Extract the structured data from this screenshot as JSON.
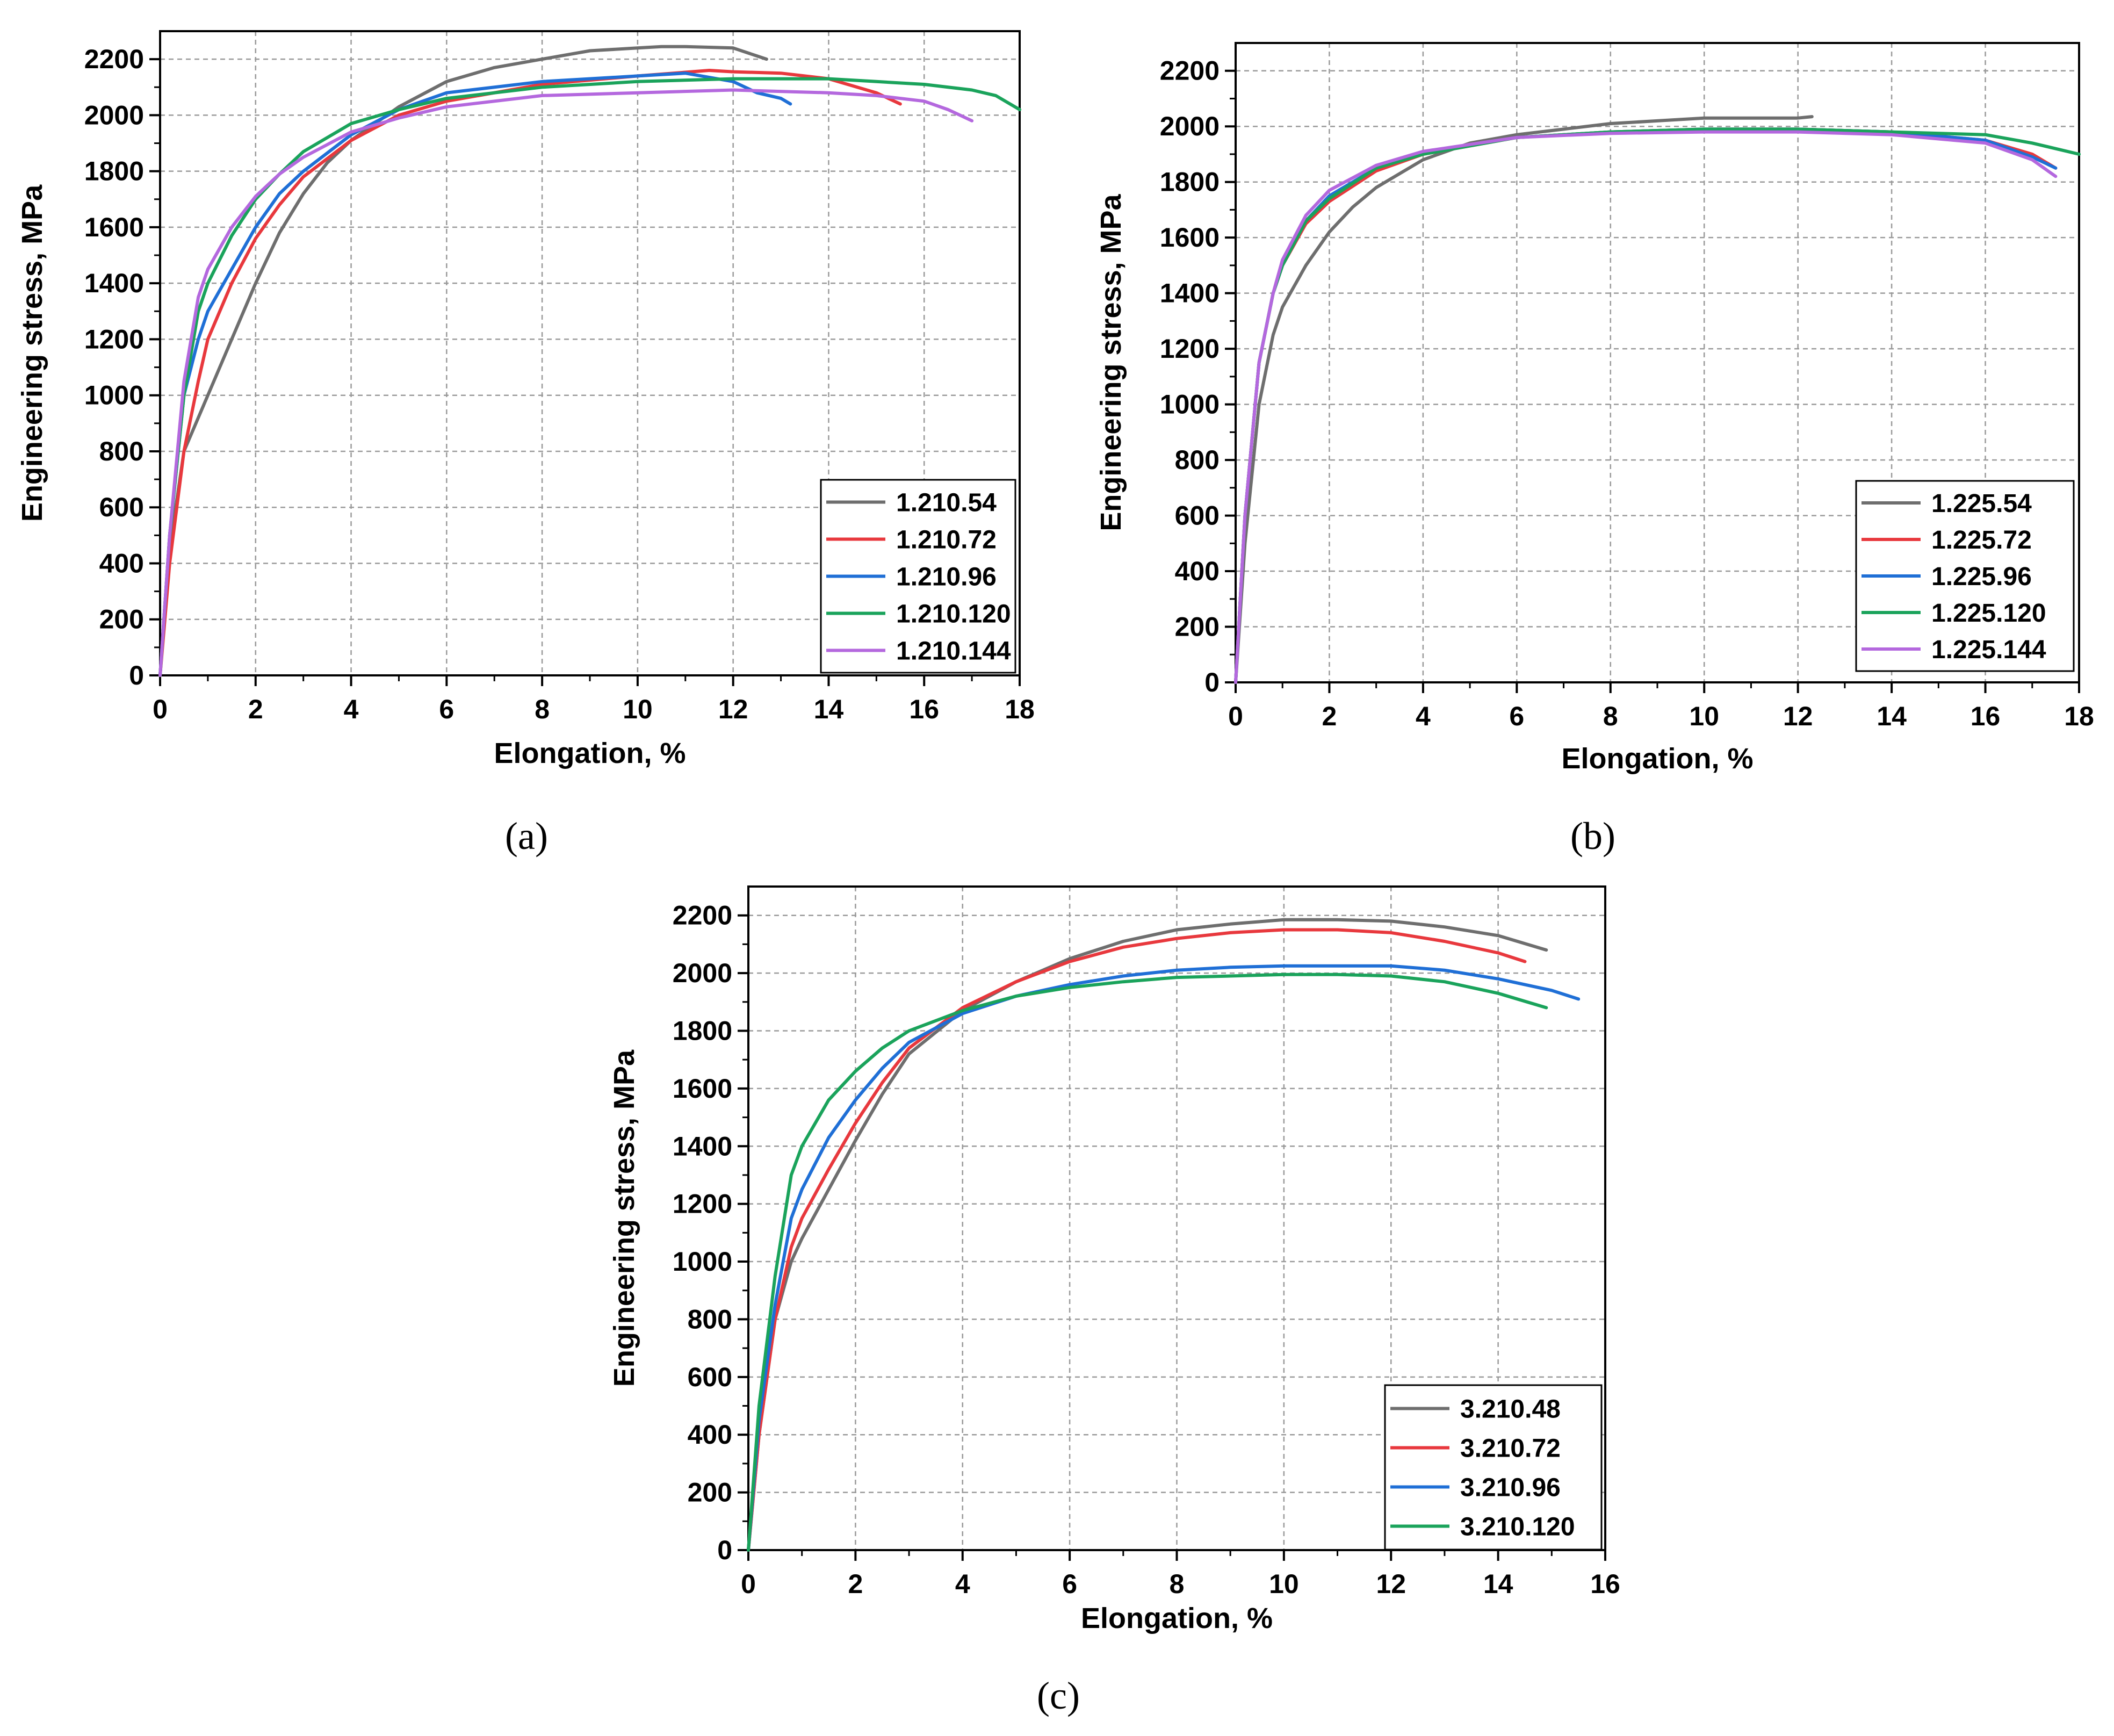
{
  "chart_data": [
    {
      "type": "line",
      "panel_label": "(a)",
      "xlabel": "Elongation, %",
      "ylabel": "Engineering stress, MPa",
      "xlim": [
        0,
        18
      ],
      "ylim": [
        0,
        2300
      ],
      "xticks": [
        "0",
        "2",
        "4",
        "6",
        "8",
        "10",
        "12",
        "14",
        "16",
        "18"
      ],
      "yticks": [
        "0",
        "200",
        "400",
        "600",
        "800",
        "1000",
        "1200",
        "1400",
        "1600",
        "1800",
        "2000",
        "2200"
      ],
      "grid": true,
      "legend_position": "bottom-right",
      "series": [
        {
          "name": "1.210.54",
          "color": "#6e6e6e",
          "x": [
            0,
            0.2,
            0.5,
            1,
            1.5,
            2,
            2.5,
            3,
            3.5,
            4,
            5,
            6,
            7,
            8,
            9,
            10,
            10.5,
            11,
            12,
            12.7
          ],
          "y": [
            0,
            450,
            800,
            1000,
            1200,
            1400,
            1580,
            1720,
            1830,
            1910,
            2030,
            2120,
            2170,
            2200,
            2230,
            2240,
            2245,
            2245,
            2240,
            2200
          ]
        },
        {
          "name": "1.210.72",
          "color": "#e8383d",
          "x": [
            0,
            0.2,
            0.5,
            0.8,
            1,
            1.5,
            2,
            2.5,
            3,
            4,
            5,
            6,
            8,
            10,
            11.5,
            12,
            13,
            14,
            15,
            15.5
          ],
          "y": [
            0,
            400,
            800,
            1050,
            1200,
            1400,
            1560,
            1680,
            1780,
            1910,
            2000,
            2050,
            2110,
            2140,
            2160,
            2155,
            2150,
            2130,
            2080,
            2040
          ]
        },
        {
          "name": "1.210.96",
          "color": "#1f6fd6",
          "x": [
            0,
            0.2,
            0.5,
            0.8,
            1,
            1.5,
            2,
            2.5,
            3,
            4,
            5,
            6,
            8,
            10,
            11,
            12,
            12.5,
            13,
            13.2
          ],
          "y": [
            0,
            500,
            1000,
            1200,
            1300,
            1450,
            1600,
            1720,
            1800,
            1930,
            2020,
            2080,
            2120,
            2140,
            2150,
            2120,
            2080,
            2060,
            2040
          ]
        },
        {
          "name": "1.210.120",
          "color": "#1aa35b",
          "x": [
            0,
            0.2,
            0.5,
            0.8,
            1,
            1.5,
            2,
            2.5,
            3,
            4,
            5,
            6,
            8,
            10,
            12,
            14,
            15,
            16,
            17,
            17.5,
            18
          ],
          "y": [
            0,
            500,
            1000,
            1300,
            1400,
            1570,
            1700,
            1790,
            1870,
            1970,
            2020,
            2060,
            2100,
            2120,
            2130,
            2130,
            2120,
            2110,
            2090,
            2070,
            2020
          ]
        },
        {
          "name": "1.210.144",
          "color": "#b468de",
          "x": [
            0,
            0.2,
            0.5,
            0.8,
            1,
            1.5,
            2,
            2.5,
            3,
            4,
            5,
            6,
            8,
            10,
            12,
            14,
            15,
            16,
            16.5,
            17
          ],
          "y": [
            0,
            500,
            1050,
            1350,
            1450,
            1600,
            1710,
            1790,
            1850,
            1940,
            1990,
            2030,
            2070,
            2080,
            2090,
            2080,
            2070,
            2050,
            2020,
            1980
          ]
        }
      ]
    },
    {
      "type": "line",
      "panel_label": "(b)",
      "xlabel": "Elongation, %",
      "ylabel": "Engineering stress, MPa",
      "xlim": [
        0,
        18
      ],
      "ylim": [
        0,
        2300
      ],
      "xticks": [
        "0",
        "2",
        "4",
        "6",
        "8",
        "10",
        "12",
        "14",
        "16",
        "18"
      ],
      "yticks": [
        "0",
        "200",
        "400",
        "600",
        "800",
        "1000",
        "1200",
        "1400",
        "1600",
        "1800",
        "2000",
        "2200"
      ],
      "grid": true,
      "legend_position": "bottom-right",
      "series": [
        {
          "name": "1.225.54",
          "color": "#6e6e6e",
          "x": [
            0,
            0.2,
            0.5,
            0.8,
            1,
            1.5,
            2,
            2.5,
            3,
            4,
            5,
            6,
            7,
            8,
            9,
            10,
            11,
            12,
            12.3
          ],
          "y": [
            0,
            500,
            1000,
            1250,
            1350,
            1500,
            1620,
            1710,
            1780,
            1880,
            1940,
            1970,
            1990,
            2010,
            2020,
            2030,
            2030,
            2030,
            2035
          ]
        },
        {
          "name": "1.225.72",
          "color": "#e8383d",
          "x": [
            0,
            0.2,
            0.5,
            0.8,
            1,
            1.5,
            2,
            3,
            4,
            6,
            8,
            10,
            12,
            14,
            16,
            17,
            17.5
          ],
          "y": [
            0,
            600,
            1150,
            1400,
            1500,
            1650,
            1730,
            1840,
            1900,
            1960,
            1980,
            1990,
            1990,
            1980,
            1950,
            1900,
            1850
          ]
        },
        {
          "name": "1.225.96",
          "color": "#1f6fd6",
          "x": [
            0,
            0.2,
            0.5,
            0.8,
            1,
            1.5,
            2,
            3,
            4,
            6,
            8,
            10,
            12,
            14,
            16,
            17,
            17.5
          ],
          "y": [
            0,
            600,
            1150,
            1400,
            1500,
            1660,
            1750,
            1850,
            1905,
            1960,
            1980,
            1990,
            1990,
            1980,
            1950,
            1890,
            1850
          ]
        },
        {
          "name": "1.225.120",
          "color": "#1aa35b",
          "x": [
            0,
            0.2,
            0.5,
            0.8,
            1,
            1.5,
            2,
            3,
            4,
            6,
            8,
            10,
            12,
            14,
            16,
            17,
            18
          ],
          "y": [
            0,
            600,
            1150,
            1400,
            1500,
            1660,
            1740,
            1850,
            1900,
            1960,
            1980,
            1990,
            1990,
            1980,
            1970,
            1940,
            1900
          ]
        },
        {
          "name": "1.225.144",
          "color": "#b468de",
          "x": [
            0,
            0.2,
            0.5,
            0.8,
            1,
            1.5,
            2,
            3,
            4,
            6,
            8,
            10,
            12,
            14,
            16,
            17,
            17.5
          ],
          "y": [
            0,
            600,
            1150,
            1400,
            1520,
            1680,
            1770,
            1860,
            1910,
            1960,
            1975,
            1980,
            1980,
            1970,
            1940,
            1880,
            1820
          ]
        }
      ]
    },
    {
      "type": "line",
      "panel_label": "(c)",
      "xlabel": "Elongation, %",
      "ylabel": "Engineering stress, MPa",
      "xlim": [
        0,
        16
      ],
      "ylim": [
        0,
        2300
      ],
      "xticks": [
        "0",
        "2",
        "4",
        "6",
        "8",
        "10",
        "12",
        "14",
        "16"
      ],
      "yticks": [
        "0",
        "200",
        "400",
        "600",
        "800",
        "1000",
        "1200",
        "1400",
        "1600",
        "1800",
        "2000",
        "2200"
      ],
      "grid": true,
      "legend_position": "bottom-right",
      "series": [
        {
          "name": "3.210.48",
          "color": "#6e6e6e",
          "x": [
            0,
            0.2,
            0.5,
            0.8,
            1,
            1.5,
            2,
            2.5,
            3,
            4,
            5,
            6,
            7,
            8,
            9,
            10,
            11,
            12,
            13,
            14,
            14.9
          ],
          "y": [
            0,
            400,
            800,
            1000,
            1080,
            1250,
            1420,
            1580,
            1720,
            1870,
            1970,
            2050,
            2110,
            2150,
            2170,
            2185,
            2185,
            2180,
            2160,
            2130,
            2080
          ]
        },
        {
          "name": "3.210.72",
          "color": "#e8383d",
          "x": [
            0,
            0.2,
            0.5,
            0.8,
            1,
            1.5,
            2,
            2.5,
            3,
            4,
            5,
            6,
            7,
            8,
            9,
            10,
            11,
            12,
            13,
            14,
            14.5
          ],
          "y": [
            0,
            400,
            800,
            1050,
            1150,
            1320,
            1480,
            1620,
            1740,
            1880,
            1970,
            2040,
            2090,
            2120,
            2140,
            2150,
            2150,
            2140,
            2110,
            2070,
            2040
          ]
        },
        {
          "name": "3.210.96",
          "color": "#1f6fd6",
          "x": [
            0,
            0.2,
            0.5,
            0.8,
            1,
            1.5,
            2,
            2.5,
            3,
            4,
            5,
            6,
            7,
            8,
            9,
            10,
            11,
            12,
            13,
            14,
            15,
            15.5
          ],
          "y": [
            0,
            450,
            850,
            1150,
            1250,
            1430,
            1560,
            1670,
            1760,
            1860,
            1920,
            1960,
            1990,
            2010,
            2020,
            2025,
            2025,
            2025,
            2010,
            1980,
            1940,
            1910
          ]
        },
        {
          "name": "3.210.120",
          "color": "#1aa35b",
          "x": [
            0,
            0.2,
            0.5,
            0.8,
            1,
            1.5,
            2,
            2.5,
            3,
            4,
            5,
            6,
            7,
            8,
            9,
            10,
            11,
            12,
            13,
            14,
            14.9
          ],
          "y": [
            0,
            500,
            950,
            1300,
            1400,
            1560,
            1660,
            1740,
            1800,
            1870,
            1920,
            1950,
            1970,
            1985,
            1990,
            1995,
            1995,
            1990,
            1970,
            1930,
            1880
          ]
        }
      ]
    }
  ]
}
